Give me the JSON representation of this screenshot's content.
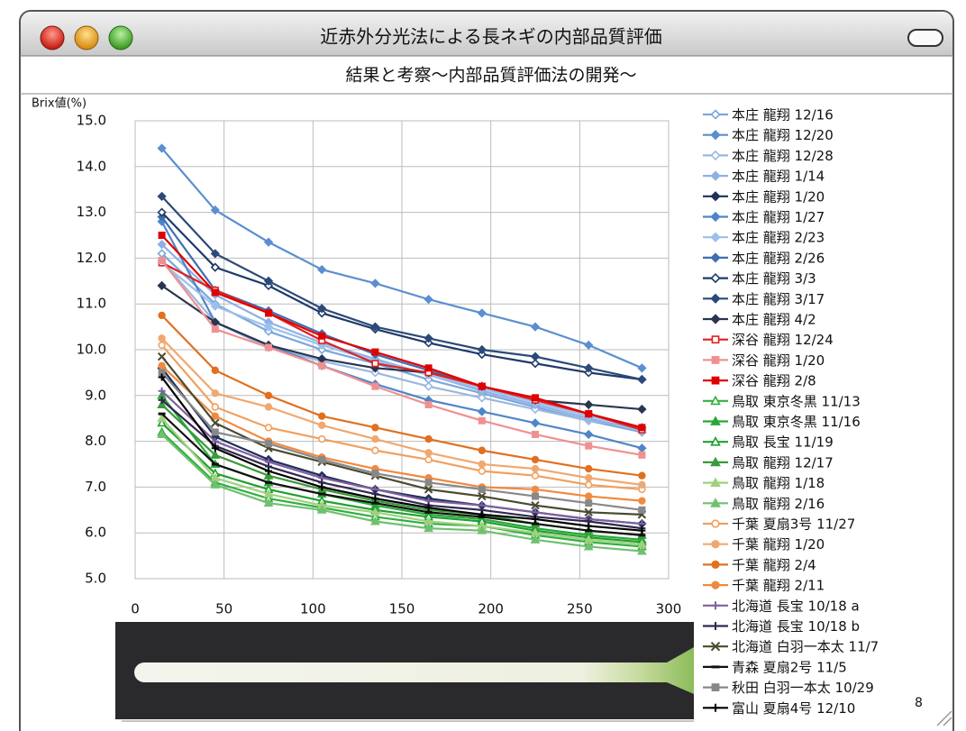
{
  "window_title": "近赤外分光法による長ネギの内部品質評価",
  "subtitle": "結果と考察～内部品質評価法の開発～",
  "page_number": "8",
  "chart_data": {
    "type": "line",
    "y_label": "Brix値(%)",
    "x": [
      15,
      45,
      75,
      105,
      135,
      165,
      195,
      225,
      255,
      285
    ],
    "xlim": [
      0,
      300
    ],
    "xticks": [
      0,
      50,
      100,
      150,
      200,
      250,
      300
    ],
    "ylim": [
      5,
      15
    ],
    "yticks": [
      {
        "value": 5,
        "label": "5.0"
      },
      {
        "value": 6,
        "label": "6.0"
      },
      {
        "value": 7,
        "label": "7.0"
      },
      {
        "value": 8,
        "label": "8.0"
      },
      {
        "value": 9,
        "label": "9.0"
      },
      {
        "value": 10,
        "label": "10.0"
      },
      {
        "value": 11,
        "label": "11.0"
      },
      {
        "value": 12,
        "label": "12.0"
      },
      {
        "value": 13,
        "label": "13.0"
      },
      {
        "value": 14,
        "label": "14.0"
      },
      {
        "value": 15,
        "label": "15.0"
      }
    ],
    "grid": true,
    "legend": "right",
    "series": [
      {
        "name": "本庄 龍翔 12/16",
        "color": "#7aa7dc",
        "marker": "diamond",
        "open": true,
        "values": [
          12.1,
          11.0,
          10.4,
          10.0,
          9.7,
          9.35,
          9.05,
          8.75,
          8.45,
          8.2
        ]
      },
      {
        "name": "本庄 龍翔 12/20",
        "color": "#5b8fd0",
        "marker": "diamond",
        "open": false,
        "values": [
          14.4,
          13.05,
          12.35,
          11.75,
          11.45,
          11.1,
          10.8,
          10.5,
          10.1,
          9.6
        ]
      },
      {
        "name": "本庄 龍翔 12/28",
        "color": "#9bb7e0",
        "marker": "diamond",
        "open": true,
        "values": [
          11.95,
          10.6,
          10.05,
          9.75,
          9.5,
          9.2,
          8.95,
          8.7,
          8.45,
          8.3
        ]
      },
      {
        "name": "本庄 龍翔 1/14",
        "color": "#8fb0e6",
        "marker": "diamond",
        "open": false,
        "values": [
          12.3,
          11.2,
          10.6,
          10.15,
          9.8,
          9.45,
          9.1,
          8.8,
          8.5,
          8.25
        ]
      },
      {
        "name": "本庄 龍翔 1/20",
        "color": "#1f2f5a",
        "marker": "diamond",
        "open": false,
        "values": [
          9.6,
          8.1,
          7.6,
          7.25,
          6.95,
          6.75,
          6.6,
          6.45,
          6.3,
          6.2
        ]
      },
      {
        "name": "本庄 龍翔 1/27",
        "color": "#4f86c8",
        "marker": "diamond",
        "open": false,
        "values": [
          12.8,
          10.6,
          10.1,
          9.65,
          9.25,
          8.9,
          8.65,
          8.4,
          8.15,
          7.85
        ]
      },
      {
        "name": "本庄 龍翔 2/23",
        "color": "#9cc0ec",
        "marker": "diamond",
        "open": false,
        "values": [
          11.9,
          10.95,
          10.5,
          10.1,
          9.75,
          9.45,
          9.15,
          8.85,
          8.55,
          8.3
        ]
      },
      {
        "name": "本庄 龍翔 2/26",
        "color": "#3f6fb0",
        "marker": "diamond",
        "open": false,
        "values": [
          12.9,
          11.3,
          10.85,
          10.35,
          9.9,
          9.55,
          9.2,
          8.9,
          8.6,
          8.3
        ]
      },
      {
        "name": "本庄 龍翔 3/3",
        "color": "#1e3a6a",
        "marker": "diamond",
        "open": true,
        "values": [
          13.0,
          11.8,
          11.4,
          10.8,
          10.45,
          10.15,
          9.9,
          9.7,
          9.5,
          9.35
        ]
      },
      {
        "name": "本庄 龍翔 3/17",
        "color": "#2c4a78",
        "marker": "diamond",
        "open": false,
        "values": [
          13.35,
          12.1,
          11.5,
          10.9,
          10.5,
          10.25,
          10.0,
          9.85,
          9.6,
          9.35
        ]
      },
      {
        "name": "本庄 龍翔 4/2",
        "color": "#2a3550",
        "marker": "diamond",
        "open": false,
        "values": [
          11.4,
          10.6,
          10.1,
          9.8,
          9.6,
          9.5,
          9.2,
          8.9,
          8.8,
          8.7
        ]
      },
      {
        "name": "深谷 龍翔 12/24",
        "color": "#e02020",
        "marker": "square",
        "open": true,
        "values": [
          11.9,
          11.3,
          10.8,
          10.2,
          9.7,
          9.5,
          9.2,
          8.9,
          8.6,
          8.25
        ]
      },
      {
        "name": "深谷 龍翔 1/20",
        "color": "#f09090",
        "marker": "square",
        "open": false,
        "values": [
          11.95,
          10.45,
          10.05,
          9.65,
          9.2,
          8.8,
          8.45,
          8.15,
          7.9,
          7.7
        ]
      },
      {
        "name": "深谷 龍翔 2/8",
        "color": "#e00000",
        "marker": "square",
        "open": false,
        "values": [
          12.5,
          11.25,
          10.8,
          10.3,
          9.95,
          9.6,
          9.2,
          8.95,
          8.6,
          8.3
        ]
      },
      {
        "name": "鳥取 東京冬黒 11/13",
        "color": "#30b040",
        "marker": "triangle",
        "open": true,
        "values": [
          8.2,
          7.1,
          6.75,
          6.55,
          6.35,
          6.2,
          6.15,
          5.95,
          5.8,
          5.7
        ]
      },
      {
        "name": "鳥取 東京冬黒 11/16",
        "color": "#28a838",
        "marker": "triangle",
        "open": false,
        "values": [
          9.0,
          7.5,
          7.1,
          6.85,
          6.6,
          6.4,
          6.3,
          6.1,
          5.95,
          5.85
        ]
      },
      {
        "name": "鳥取 長宝 11/19",
        "color": "#20a030",
        "marker": "triangle",
        "open": true,
        "values": [
          8.4,
          7.3,
          6.95,
          6.7,
          6.5,
          6.35,
          6.25,
          6.05,
          5.9,
          5.8
        ]
      },
      {
        "name": "鳥取 龍翔 12/17",
        "color": "#3a9a3a",
        "marker": "triangle",
        "open": false,
        "values": [
          8.8,
          7.7,
          7.25,
          6.95,
          6.7,
          6.5,
          6.4,
          6.2,
          6.05,
          5.95
        ]
      },
      {
        "name": "鳥取 龍翔 1/18",
        "color": "#a0d080",
        "marker": "triangle",
        "open": false,
        "values": [
          8.5,
          7.2,
          6.85,
          6.6,
          6.45,
          6.25,
          6.15,
          6.0,
          5.85,
          5.75
        ]
      },
      {
        "name": "鳥取 龍翔 2/16",
        "color": "#70c070",
        "marker": "triangle",
        "open": false,
        "values": [
          8.15,
          7.05,
          6.65,
          6.5,
          6.25,
          6.1,
          6.05,
          5.85,
          5.7,
          5.6
        ]
      },
      {
        "name": "千葉 夏扇3号 11/27",
        "color": "#f0a060",
        "marker": "circle",
        "open": true,
        "values": [
          10.1,
          8.75,
          8.3,
          8.05,
          7.8,
          7.6,
          7.35,
          7.25,
          7.05,
          6.95
        ]
      },
      {
        "name": "千葉 龍翔 1/20",
        "color": "#f0a870",
        "marker": "circle",
        "open": false,
        "values": [
          10.25,
          9.05,
          8.75,
          8.35,
          8.05,
          7.75,
          7.5,
          7.4,
          7.2,
          7.05
        ]
      },
      {
        "name": "千葉 龍翔 2/4",
        "color": "#e07020",
        "marker": "circle",
        "open": false,
        "values": [
          10.75,
          9.55,
          9.0,
          8.55,
          8.3,
          8.05,
          7.8,
          7.6,
          7.4,
          7.25
        ]
      },
      {
        "name": "千葉 龍翔 2/11",
        "color": "#f08a40",
        "marker": "circle",
        "open": false,
        "values": [
          9.65,
          8.55,
          8.0,
          7.65,
          7.4,
          7.2,
          7.0,
          6.95,
          6.8,
          6.7
        ]
      },
      {
        "name": "北海道 長宝 10/18 a",
        "color": "#8060a0",
        "marker": "plus",
        "open": false,
        "values": [
          9.1,
          8.0,
          7.55,
          7.2,
          6.95,
          6.7,
          6.6,
          6.45,
          6.3,
          6.2
        ]
      },
      {
        "name": "北海道 長宝 10/18 b",
        "color": "#302850",
        "marker": "plus",
        "open": false,
        "values": [
          8.9,
          7.9,
          7.45,
          7.1,
          6.85,
          6.6,
          6.5,
          6.35,
          6.25,
          6.1
        ]
      },
      {
        "name": "北海道 白羽一本太 11/7",
        "color": "#4a4a30",
        "marker": "cross",
        "open": false,
        "values": [
          9.85,
          8.4,
          7.85,
          7.55,
          7.25,
          6.95,
          6.8,
          6.6,
          6.45,
          6.4
        ]
      },
      {
        "name": "青森 夏扇2号 11/5",
        "color": "#101010",
        "marker": "dash",
        "open": false,
        "values": [
          8.6,
          7.5,
          7.1,
          6.85,
          6.65,
          6.45,
          6.35,
          6.2,
          6.05,
          5.95
        ]
      },
      {
        "name": "秋田 白羽一本太 10/29",
        "color": "#888888",
        "marker": "square",
        "open": false,
        "values": [
          9.5,
          8.2,
          7.95,
          7.6,
          7.3,
          7.1,
          6.95,
          6.8,
          6.65,
          6.5
        ]
      },
      {
        "name": "富山 夏扇4号 12/10",
        "color": "#000000",
        "marker": "plus",
        "open": true,
        "values": [
          9.4,
          7.85,
          7.35,
          7.0,
          6.75,
          6.55,
          6.4,
          6.3,
          6.15,
          6.05
        ]
      }
    ]
  }
}
